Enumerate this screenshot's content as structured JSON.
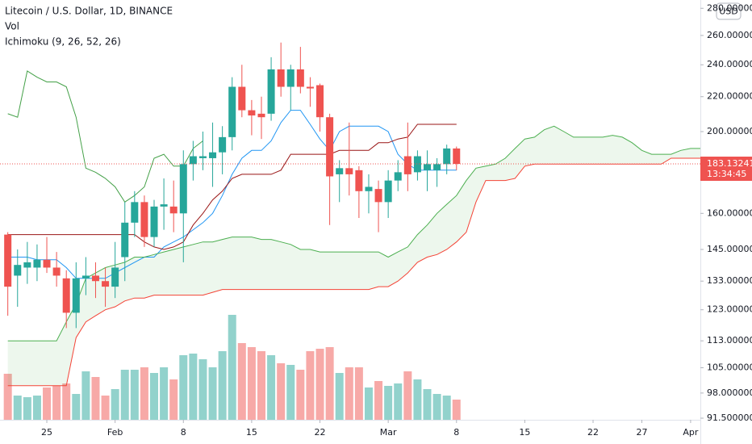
{
  "chart_data": {
    "type": "candlestick",
    "title": "Litecoin / U.S. Dollar, 1D, BINANCE",
    "indicators": [
      "Vol",
      "Ichimoku (9, 26, 52, 26)"
    ],
    "currency": "USD",
    "countdown": "13:34:45",
    "log_y": true,
    "up_color": "#26a69a",
    "down_color": "#ef5350",
    "cloud_color": "#4caf50",
    "xlim": [
      -0.8,
      71
    ],
    "xticks": [
      {
        "value": 4,
        "label": "25"
      },
      {
        "value": 11,
        "label": "Feb"
      },
      {
        "value": 18,
        "label": "8"
      },
      {
        "value": 25,
        "label": "15"
      },
      {
        "value": 32,
        "label": "22"
      },
      {
        "value": 39,
        "label": "Mar"
      },
      {
        "value": 46,
        "label": "8"
      },
      {
        "value": 53,
        "label": "15"
      },
      {
        "value": 60,
        "label": "22"
      },
      {
        "value": 65,
        "label": "27"
      },
      {
        "value": 70,
        "label": "Apr"
      }
    ],
    "ylim": [
      91.1,
      286.4
    ],
    "yticks": [
      {
        "value": 280,
        "label": "280.000000"
      },
      {
        "value": 260,
        "label": "260.000000"
      },
      {
        "value": 240,
        "label": "240.000000"
      },
      {
        "value": 220,
        "label": "220.000000"
      },
      {
        "value": 200,
        "label": "200.000000"
      },
      {
        "value": 160,
        "label": "160.000000"
      },
      {
        "value": 145,
        "label": "145.000000"
      },
      {
        "value": 133,
        "label": "133.000000"
      },
      {
        "value": 123,
        "label": "123.000000"
      },
      {
        "value": 113,
        "label": "113.000000"
      },
      {
        "value": 105,
        "label": "105.000000"
      },
      {
        "value": 98,
        "label": "98.000000"
      },
      {
        "value": 91.5,
        "label": "91.500000"
      }
    ],
    "open": [
      151,
      135,
      138,
      138,
      141,
      138,
      134,
      122,
      134,
      135,
      133,
      131,
      142,
      156,
      165,
      150,
      163,
      163,
      160,
      183,
      186,
      186,
      189,
      197,
      226,
      212,
      210,
      210,
      237,
      226,
      237,
      226,
      227,
      208,
      178,
      181,
      180,
      170,
      171,
      165,
      175,
      187,
      179,
      180,
      180,
      183,
      191
    ],
    "high": [
      152,
      145,
      148,
      147,
      150,
      144,
      137,
      140,
      142,
      140,
      138,
      148,
      165,
      170,
      168,
      166,
      176,
      175,
      190,
      195,
      200,
      205,
      203,
      232,
      240,
      218,
      220,
      245,
      255,
      240,
      252,
      232,
      228,
      210,
      185,
      205,
      182,
      178,
      175,
      180,
      185,
      205,
      190,
      190,
      186,
      193,
      192
    ],
    "low": [
      121,
      124,
      132,
      133,
      136,
      131,
      117,
      117,
      128,
      127,
      124,
      127,
      133,
      150,
      146,
      146,
      153,
      152,
      140,
      175,
      180,
      172,
      178,
      190,
      208,
      198,
      196,
      206,
      220,
      212,
      222,
      214,
      200,
      155,
      165,
      168,
      158,
      160,
      152,
      158,
      170,
      170,
      175,
      170,
      172,
      178,
      180
    ],
    "close": [
      131,
      139,
      140,
      141,
      138,
      135,
      122,
      134,
      135,
      133,
      131,
      138,
      156,
      165,
      150,
      163,
      164,
      160,
      183,
      187,
      187,
      189,
      197,
      226,
      212,
      209,
      208,
      237,
      226,
      237,
      226,
      225,
      208,
      177,
      181,
      178,
      170,
      172,
      165,
      175,
      179,
      178,
      187,
      183,
      183,
      191,
      183.132419
    ],
    "volume": [
      57,
      30,
      28,
      30,
      40,
      42,
      45,
      32,
      60,
      53,
      30,
      38,
      62,
      62,
      65,
      58,
      65,
      50,
      80,
      82,
      75,
      65,
      85,
      130,
      95,
      90,
      85,
      80,
      70,
      68,
      62,
      85,
      88,
      90,
      58,
      65,
      65,
      40,
      48,
      42,
      45,
      60,
      50,
      38,
      32,
      30,
      25
    ],
    "ichimoku": [
      {
        "color": "#2196f3",
        "values": [
          142,
          142,
          142,
          141,
          141,
          141,
          138,
          134,
          134,
          134,
          134,
          136,
          138,
          140,
          142,
          142,
          146,
          148,
          150,
          153,
          156,
          160,
          168,
          178,
          186,
          190,
          190,
          195,
          205,
          212,
          212,
          204,
          196,
          190,
          200,
          203,
          203,
          203,
          203,
          200,
          188,
          183,
          180,
          180,
          180,
          180,
          180
        ]
      },
      {
        "color": "#991515",
        "values": [
          151,
          151,
          151,
          151,
          151,
          151,
          151,
          151,
          151,
          151,
          151,
          151,
          151,
          151,
          148,
          146,
          145,
          146,
          148,
          155,
          160,
          166,
          170,
          176,
          178,
          178,
          178,
          178,
          180,
          188,
          188,
          188,
          188,
          188,
          190,
          190,
          190,
          190,
          194,
          194,
          196,
          197,
          204,
          204,
          204,
          204,
          204
        ]
      },
      {
        "color": "#43a047",
        "values": [
          210,
          208,
          236,
          232,
          229,
          229,
          226,
          208,
          181,
          179,
          176,
          172,
          165,
          168,
          172,
          186,
          188,
          182,
          182,
          191,
          195
        ]
      },
      {
        "color": "#4caf50",
        "values": [
          113,
          113,
          113,
          113,
          113,
          113,
          119,
          125,
          134,
          136,
          138,
          139,
          140,
          142,
          142,
          143,
          144,
          145,
          146,
          147,
          148,
          148,
          149,
          150,
          150,
          150,
          149,
          149,
          148,
          147,
          145,
          145,
          144,
          144,
          144,
          144,
          144,
          144,
          144,
          142,
          144,
          146,
          151,
          155,
          160,
          164,
          168,
          175,
          181,
          182,
          183,
          186,
          191,
          196,
          197,
          201,
          203,
          200,
          197,
          197,
          197,
          197,
          198,
          197,
          194,
          190,
          188,
          188,
          188,
          190,
          191,
          191
        ]
      },
      {
        "color": "#f44336",
        "values": [
          100,
          100,
          100,
          100,
          100,
          100,
          100,
          114,
          119,
          121,
          123,
          124,
          126,
          127,
          127,
          128,
          128,
          128,
          128,
          128,
          128,
          129,
          130,
          130,
          130,
          130,
          130,
          130,
          130,
          130,
          130,
          130,
          130,
          130,
          130,
          130,
          130,
          130,
          131,
          131,
          133,
          136,
          140,
          142,
          143,
          145,
          148,
          152,
          165,
          175,
          175,
          175,
          176,
          182,
          183,
          183,
          183,
          183,
          183,
          183,
          183,
          183,
          183,
          183,
          183,
          183,
          183,
          183,
          186,
          186,
          186,
          186
        ]
      }
    ]
  }
}
